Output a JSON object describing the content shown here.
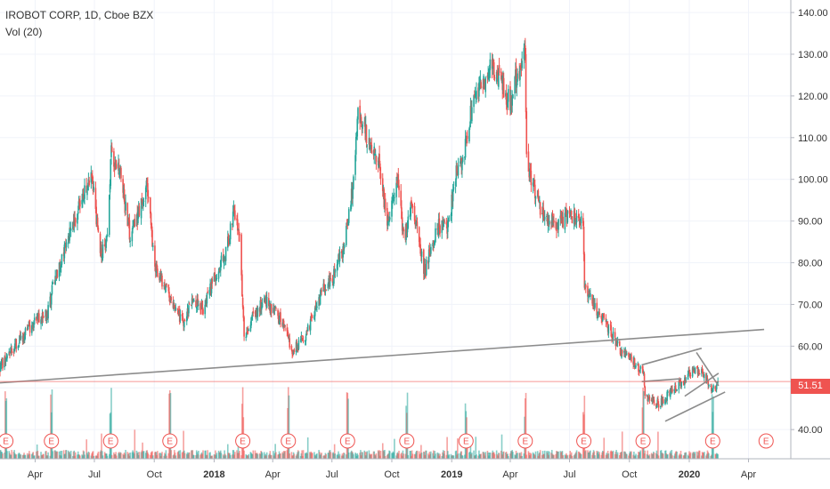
{
  "legend": {
    "title": "IROBOT CORP, 1D, Cboe BZX",
    "volume": "Vol (20)"
  },
  "current_price_label": "51.51",
  "colors": {
    "up": "#26a69a",
    "down": "#ef5350",
    "grid": "#f0f3fa",
    "trendline": "#8c8c8c",
    "price_line": "#ef5350",
    "earnings": "#ef5350"
  },
  "chart_data": {
    "type": "candlestick",
    "title": "IROBOT CORP, 1D, Cboe BZX",
    "symbol": "IROBOT CORP",
    "interval": "1D",
    "exchange": "Cboe BZX",
    "indicator": "Vol (20)",
    "y_range": [
      33,
      143
    ],
    "y_axis_position": "right",
    "y_ticks": [
      40,
      50,
      60,
      70,
      80,
      90,
      100,
      110,
      120,
      130,
      140
    ],
    "y_tick_labels": [
      "40.00",
      "50.00",
      "60.00",
      "70.00",
      "80.00",
      "90.00",
      "100.00",
      "110.00",
      "120.00",
      "130.00",
      "140.00"
    ],
    "x_range": [
      "2017-02-06",
      "2020-06-05"
    ],
    "x_ticks": [
      {
        "date": "2017-04-01",
        "label": "Apr"
      },
      {
        "date": "2017-07-01",
        "label": "Jul"
      },
      {
        "date": "2017-10-01",
        "label": "Oct"
      },
      {
        "date": "2018-01-01",
        "label": "2018",
        "bold": true
      },
      {
        "date": "2018-04-01",
        "label": "Apr"
      },
      {
        "date": "2018-07-01",
        "label": "Jul"
      },
      {
        "date": "2018-10-01",
        "label": "Oct"
      },
      {
        "date": "2019-01-01",
        "label": "2019",
        "bold": true
      },
      {
        "date": "2019-04-01",
        "label": "Apr"
      },
      {
        "date": "2019-07-01",
        "label": "Jul"
      },
      {
        "date": "2019-10-01",
        "label": "Oct"
      },
      {
        "date": "2020-01-01",
        "label": "2020",
        "bold": true
      },
      {
        "date": "2020-04-01",
        "label": "Apr"
      }
    ],
    "grid": true,
    "last_price": 51.51,
    "price_path": [
      [
        "2017-02-06",
        55
      ],
      [
        "2017-03-01",
        60
      ],
      [
        "2017-04-01",
        66
      ],
      [
        "2017-04-20",
        68
      ],
      [
        "2017-05-01",
        76
      ],
      [
        "2017-05-20",
        85
      ],
      [
        "2017-06-15",
        97
      ],
      [
        "2017-06-28",
        100
      ],
      [
        "2017-07-10",
        82
      ],
      [
        "2017-07-20",
        85
      ],
      [
        "2017-07-27",
        106
      ],
      [
        "2017-08-10",
        101
      ],
      [
        "2017-08-25",
        86
      ],
      [
        "2017-09-10",
        93
      ],
      [
        "2017-09-20",
        99
      ],
      [
        "2017-10-01",
        79
      ],
      [
        "2017-10-20",
        74
      ],
      [
        "2017-11-03",
        68
      ],
      [
        "2017-11-15",
        66
      ],
      [
        "2017-12-01",
        71
      ],
      [
        "2017-12-15",
        69
      ],
      [
        "2018-01-01",
        76
      ],
      [
        "2018-01-20",
        83
      ],
      [
        "2018-02-01",
        93
      ],
      [
        "2018-02-10",
        84
      ],
      [
        "2018-02-16",
        62
      ],
      [
        "2018-03-01",
        67
      ],
      [
        "2018-03-20",
        71
      ],
      [
        "2018-04-15",
        66
      ],
      [
        "2018-05-01",
        59
      ],
      [
        "2018-05-20",
        62
      ],
      [
        "2018-06-15",
        73
      ],
      [
        "2018-07-01",
        76
      ],
      [
        "2018-07-20",
        84
      ],
      [
        "2018-08-01",
        97
      ],
      [
        "2018-08-10",
        115
      ],
      [
        "2018-08-25",
        110
      ],
      [
        "2018-09-10",
        105
      ],
      [
        "2018-09-25",
        89
      ],
      [
        "2018-10-10",
        100
      ],
      [
        "2018-10-20",
        85
      ],
      [
        "2018-11-01",
        95
      ],
      [
        "2018-11-20",
        78
      ],
      [
        "2018-12-10",
        89
      ],
      [
        "2018-12-25",
        88
      ],
      [
        "2019-01-10",
        103
      ],
      [
        "2019-01-20",
        106
      ],
      [
        "2019-02-01",
        118
      ],
      [
        "2019-02-20",
        123
      ],
      [
        "2019-03-01",
        127
      ],
      [
        "2019-03-20",
        123
      ],
      [
        "2019-04-01",
        118
      ],
      [
        "2019-04-10",
        125
      ],
      [
        "2019-04-24",
        130
      ],
      [
        "2019-04-26",
        104
      ],
      [
        "2019-05-10",
        97
      ],
      [
        "2019-05-20",
        92
      ],
      [
        "2019-06-10",
        89
      ],
      [
        "2019-07-01",
        91
      ],
      [
        "2019-07-22",
        90
      ],
      [
        "2019-07-24",
        75
      ],
      [
        "2019-08-10",
        69
      ],
      [
        "2019-09-01",
        64
      ],
      [
        "2019-09-20",
        58
      ],
      [
        "2019-10-10",
        56
      ],
      [
        "2019-10-23",
        53
      ],
      [
        "2019-10-25",
        48
      ],
      [
        "2019-11-15",
        46
      ],
      [
        "2019-12-10",
        50
      ],
      [
        "2019-12-20",
        51
      ],
      [
        "2020-01-10",
        55
      ],
      [
        "2020-01-25",
        53
      ],
      [
        "2020-02-05",
        49
      ],
      [
        "2020-02-14",
        51.51
      ]
    ],
    "earnings_dates": [
      "2017-02-15",
      "2017-04-26",
      "2017-07-26",
      "2017-10-25",
      "2018-02-14",
      "2018-04-25",
      "2018-07-25",
      "2018-10-24",
      "2019-01-23",
      "2019-04-24",
      "2019-07-23",
      "2019-10-22",
      "2020-02-06",
      "2020-04-28"
    ],
    "earnings_label": "E",
    "trendlines": [
      {
        "from": [
          "2017-02-06",
          51.2
        ],
        "to": [
          "2020-04-25",
          64.0
        ]
      },
      {
        "from": [
          "2019-10-20",
          55.5
        ],
        "to": [
          "2020-01-20",
          59.5
        ]
      },
      {
        "from": [
          "2019-10-20",
          51.5
        ],
        "to": [
          "2019-12-20",
          52.2
        ]
      },
      {
        "from": [
          "2019-11-25",
          42.0
        ],
        "to": [
          "2020-02-25",
          49.0
        ]
      },
      {
        "from": [
          "2020-01-12",
          58.5
        ],
        "to": [
          "2020-02-15",
          50.5
        ]
      },
      {
        "from": [
          "2019-12-25",
          48.0
        ],
        "to": [
          "2020-02-15",
          53.5
        ]
      }
    ]
  }
}
